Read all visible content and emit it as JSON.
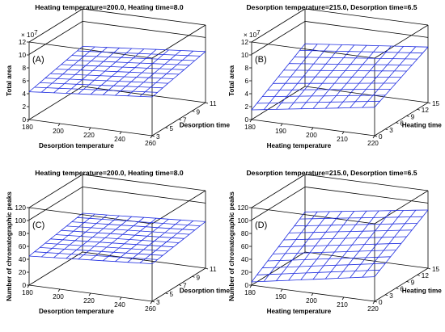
{
  "chart_data": [
    {
      "type": "surface3d",
      "panel_label": "(A)",
      "title": "Heating temperature=200.0, Heating time=8.0",
      "xlabel": "Desorption temperature",
      "ylabel": "Desorption time",
      "zlabel": "Total area",
      "z_multiplier": "× 10^7",
      "x_ticks": [
        "180",
        "200",
        "220",
        "240",
        "260"
      ],
      "y_ticks": [
        "3",
        "5",
        "7",
        "9",
        "11"
      ],
      "z_ticks": [
        "0",
        "2",
        "4",
        "6",
        "8",
        "10",
        "12"
      ],
      "xlim": [
        180,
        260
      ],
      "ylim": [
        3,
        11
      ],
      "zlim": [
        0,
        12
      ],
      "surface": {
        "z_x0_y0": 4.3,
        "z_x1_y0": 6.0,
        "z_x0_y1": 6.2,
        "z_x1_y1": 7.9
      },
      "color": "#1f2de0"
    },
    {
      "type": "surface3d",
      "panel_label": "(B)",
      "title": "Desorption temperature=215.0, Desorption time=6.5",
      "xlabel": "Heating temperature",
      "ylabel": "Heating time",
      "zlabel": "Total area",
      "z_multiplier": "× 10^7",
      "x_ticks": [
        "180",
        "190",
        "200",
        "210",
        "220"
      ],
      "y_ticks": [
        "0",
        "3",
        "6",
        "9",
        "12",
        "15"
      ],
      "z_ticks": [
        "0",
        "2",
        "4",
        "6",
        "8",
        "10",
        "12"
      ],
      "xlim": [
        180,
        220
      ],
      "ylim": [
        0,
        15
      ],
      "zlim": [
        0,
        12
      ],
      "surface": {
        "z_x0_y0": 1.5,
        "z_x1_y0": 4.4,
        "z_x0_y1": 6.6,
        "z_x1_y1": 8.6
      },
      "color": "#1f2de0"
    },
    {
      "type": "surface3d",
      "panel_label": "(C)",
      "title": "Heating temperature=200.0, Heating time=8.0",
      "xlabel": "Desorption temperature",
      "ylabel": "Desorption time",
      "zlabel": "Number of chromatographic peaks",
      "z_multiplier": "",
      "x_ticks": [
        "180",
        "200",
        "220",
        "240",
        "260"
      ],
      "y_ticks": [
        "3",
        "5",
        "7",
        "9",
        "11"
      ],
      "z_ticks": [
        "0",
        "20",
        "40",
        "60",
        "80",
        "100",
        "120"
      ],
      "xlim": [
        180,
        260
      ],
      "ylim": [
        3,
        11
      ],
      "zlim": [
        0,
        120
      ],
      "surface": {
        "z_x0_y0": 45,
        "z_x1_y0": 58,
        "z_x0_y1": 60,
        "z_x1_y1": 72
      },
      "color": "#1f2de0"
    },
    {
      "type": "surface3d",
      "panel_label": "(D)",
      "title": "Desorption temperature=215.0, Desorption time=6.5",
      "xlabel": "Heating temperature",
      "ylabel": "Heating time",
      "zlabel": "Number of chromatographic peaks",
      "z_multiplier": "",
      "x_ticks": [
        "180",
        "190",
        "200",
        "210",
        "220"
      ],
      "y_ticks": [
        "0",
        "3",
        "6",
        "9",
        "12",
        "15"
      ],
      "z_ticks": [
        "0",
        "20",
        "40",
        "60",
        "80",
        "100",
        "120"
      ],
      "xlim": [
        180,
        220
      ],
      "ylim": [
        0,
        15
      ],
      "zlim": [
        0,
        120
      ],
      "surface": {
        "z_x0_y0": 5,
        "z_x1_y0": 38,
        "z_x0_y1": 62,
        "z_x1_y1": 90
      },
      "color": "#1f2de0"
    }
  ]
}
